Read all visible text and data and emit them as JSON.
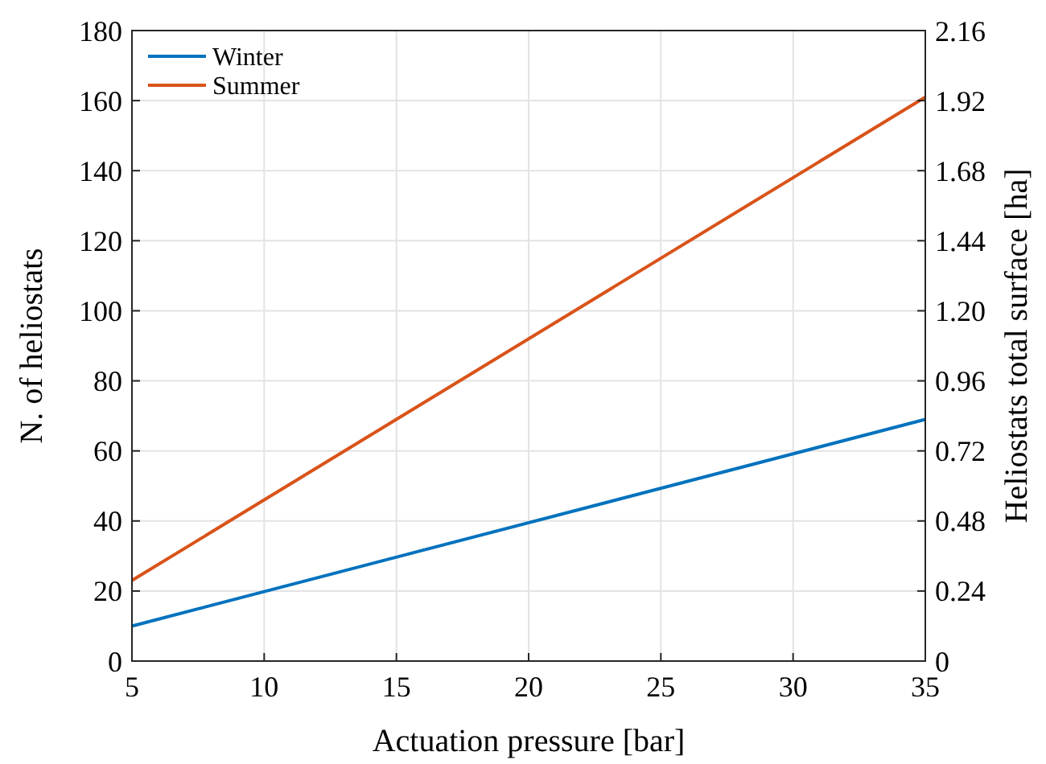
{
  "chart_data": {
    "type": "line",
    "xlabel": "Actuation pressure [bar]",
    "ylabel": "N. of heliostats",
    "y2label": "Heliostats total surface [ha]",
    "x": [
      5,
      35
    ],
    "series": [
      {
        "name": "Winter",
        "color": "#0072bd",
        "values": [
          10,
          69
        ]
      },
      {
        "name": "Summer",
        "color": "#d95319",
        "values": [
          23,
          161
        ]
      }
    ],
    "xlim": [
      5,
      35
    ],
    "xticks": [
      5,
      10,
      15,
      20,
      25,
      30,
      35
    ],
    "ylim": [
      0,
      180
    ],
    "yticks": [
      0,
      20,
      40,
      60,
      80,
      100,
      120,
      140,
      160,
      180
    ],
    "y2lim": [
      0,
      2.16
    ],
    "y2ticks": [
      0,
      0.24,
      0.48,
      0.72,
      0.96,
      {
        "value": 1.2,
        "label": "1.20"
      },
      1.44,
      1.68,
      1.92,
      2.16
    ],
    "grid": true,
    "legend": "top left",
    "marker": "none",
    "line_style": "solid"
  }
}
